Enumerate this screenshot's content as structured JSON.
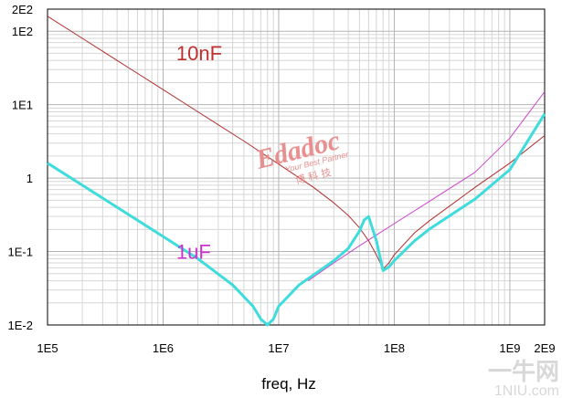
{
  "chart_data": {
    "type": "line",
    "title": "",
    "xlabel": "freq, Hz",
    "ylabel": "",
    "x_scale": "log",
    "y_scale": "log",
    "xlim": [
      100000,
      2000000000
    ],
    "ylim": [
      0.01,
      200
    ],
    "x_ticks": [
      {
        "value": 100000,
        "label": "1E5"
      },
      {
        "value": 1000000,
        "label": "1E6"
      },
      {
        "value": 10000000,
        "label": "1E7"
      },
      {
        "value": 100000000,
        "label": "1E8"
      },
      {
        "value": 1000000000,
        "label": "1E9"
      },
      {
        "value": 2000000000,
        "label": "2E9"
      }
    ],
    "y_ticks": [
      {
        "value": 0.01,
        "label": "1E-2"
      },
      {
        "value": 0.1,
        "label": "1E-1"
      },
      {
        "value": 1,
        "label": "1"
      },
      {
        "value": 10,
        "label": "1E1"
      },
      {
        "value": 100,
        "label": "1E2"
      },
      {
        "value": 200,
        "label": "2E2"
      }
    ],
    "grid": true,
    "annotations": [
      {
        "text": "10nF",
        "x": 1300000,
        "y": 40,
        "color": "#c03030"
      },
      {
        "text": "1uF",
        "x": 1300000,
        "y": 0.08,
        "color": "#cc33cc"
      }
    ],
    "series": [
      {
        "name": "",
        "color": "#b03030",
        "width": 1,
        "x": [
          100000,
          200000,
          500000,
          1000000,
          2000000,
          5000000,
          10000000,
          20000000,
          30000000,
          40000000,
          50000000,
          60000000,
          70000000,
          80000000,
          90000000,
          100000000,
          150000000,
          200000000,
          500000000,
          1000000000,
          2000000000
        ],
        "y": [
          160,
          80,
          32,
          16,
          8,
          3.2,
          1.55,
          0.75,
          0.46,
          0.31,
          0.21,
          0.14,
          0.09,
          0.058,
          0.07,
          0.09,
          0.18,
          0.26,
          0.75,
          1.6,
          3.8
        ]
      },
      {
        "name": "",
        "color": "#cc44cc",
        "width": 1,
        "x": [
          18000000,
          30000000,
          50000000,
          100000000,
          200000000,
          500000000,
          1000000000,
          2000000000
        ],
        "y": [
          0.04,
          0.07,
          0.12,
          0.24,
          0.48,
          1.2,
          3.5,
          15
        ]
      },
      {
        "name": "",
        "color": "#3edcdc",
        "width": 3,
        "x": [
          100000,
          200000,
          500000,
          1000000,
          2000000,
          4000000,
          6000000,
          7000000,
          8000000,
          9000000,
          10000000,
          15000000,
          20000000,
          30000000,
          40000000,
          50000000,
          55000000,
          60000000,
          70000000,
          80000000,
          90000000,
          100000000,
          150000000,
          200000000,
          500000000,
          1000000000,
          2000000000
        ],
        "y": [
          1.6,
          0.8,
          0.32,
          0.16,
          0.08,
          0.035,
          0.018,
          0.012,
          0.01,
          0.012,
          0.018,
          0.035,
          0.048,
          0.075,
          0.11,
          0.19,
          0.27,
          0.3,
          0.14,
          0.055,
          0.062,
          0.075,
          0.14,
          0.2,
          0.52,
          1.3,
          7.5
        ]
      }
    ]
  },
  "watermark": {
    "brand": "Edadoc",
    "slogan": "Your Best Partner",
    "cn": "博 科 技"
  },
  "corner_mark": {
    "logo": "一牛网",
    "url": "1NIU.com"
  }
}
